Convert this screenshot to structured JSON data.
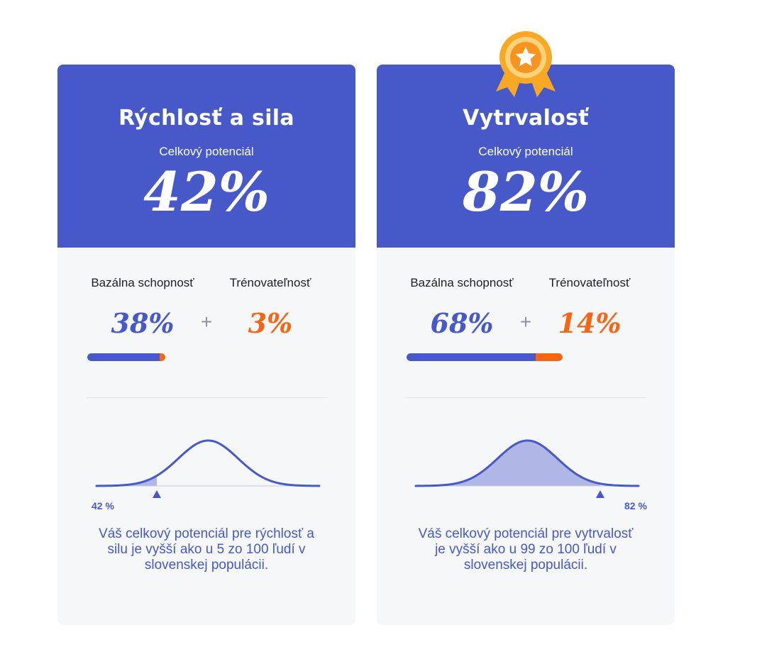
{
  "cards": [
    {
      "title": "Rýchlosť a sila",
      "subtitle": "Celkový potenciál",
      "total": "42%",
      "base_label": "Bazálna schopnosť",
      "base_pct": "38%",
      "base_value": 38,
      "plus": "+",
      "train_label": "Trénovateľnosť",
      "train_pct": "3%",
      "train_value": 3,
      "marker_label": "42 %",
      "marker_percentile": 5,
      "description": "Váš celkový potenciál pre rýchlosť a silu je vyšší ako u 5 zo 100 ľudí v slovenskej populácii."
    },
    {
      "title": "Vytrvalosť",
      "subtitle": "Celkový potenciál",
      "total": "82%",
      "base_label": "Bazálna schopnosť",
      "base_pct": "68%",
      "base_value": 68,
      "plus": "+",
      "train_label": "Trénovateľnosť",
      "train_pct": "14%",
      "train_value": 14,
      "marker_label": "82 %",
      "marker_percentile": 99,
      "description": "Váš celkový potenciál pre vytrvalosť je vyšší ako u 99 zo 100 ľudí v slovenskej populácii."
    }
  ],
  "colors": {
    "header_blue": "#4759c8",
    "accent_orange": "#fa6414",
    "card_bg": "#f6f7f9",
    "curve_fill": "#b0b7e6"
  },
  "icons": {
    "award": "medal-star-icon"
  }
}
